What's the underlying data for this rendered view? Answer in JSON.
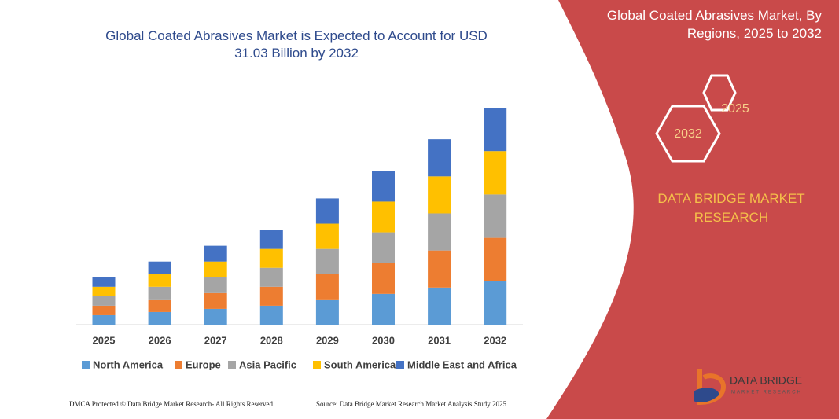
{
  "chart_data": {
    "type": "stacked-bar",
    "title": "Global Coated Abrasives Market is Expected to Account for USD 31.03 Billion by 2032",
    "categories": [
      "2025",
      "2026",
      "2027",
      "2028",
      "2029",
      "2030",
      "2031",
      "2032"
    ],
    "series": [
      {
        "name": "North America",
        "color": "#5b9bd5",
        "values": [
          12,
          16,
          20,
          24,
          32,
          39,
          47,
          55
        ]
      },
      {
        "name": "Europe",
        "color": "#ed7d31",
        "values": [
          12,
          16,
          20,
          24,
          32,
          39,
          47,
          55
        ]
      },
      {
        "name": "Asia Pacific",
        "color": "#a5a5a5",
        "values": [
          12,
          16,
          20,
          24,
          32,
          39,
          47,
          55
        ]
      },
      {
        "name": "South America",
        "color": "#ffc000",
        "values": [
          12,
          16,
          20,
          24,
          32,
          39,
          47,
          55
        ]
      },
      {
        "name": "Middle East and Africa",
        "color": "#4472c4",
        "values": [
          12,
          16,
          20,
          24,
          32,
          39,
          47,
          55
        ]
      }
    ],
    "legend": "bottom"
  },
  "panel": {
    "title": "Global Coated Abrasives Market, By Regions, 2025 to 2032",
    "hex_large": "2032",
    "hex_small": "2025",
    "brand": "DATA BRIDGE MARKET RESEARCH"
  },
  "logo": {
    "name": "DATA BRIDGE",
    "tagline": "MARKET RESEARCH"
  },
  "footer": {
    "left": "DMCA Protected © Data Bridge Market Research- All Rights Reserved.",
    "right": "Source: Data Bridge Market Research Market Analysis Study 2025"
  }
}
